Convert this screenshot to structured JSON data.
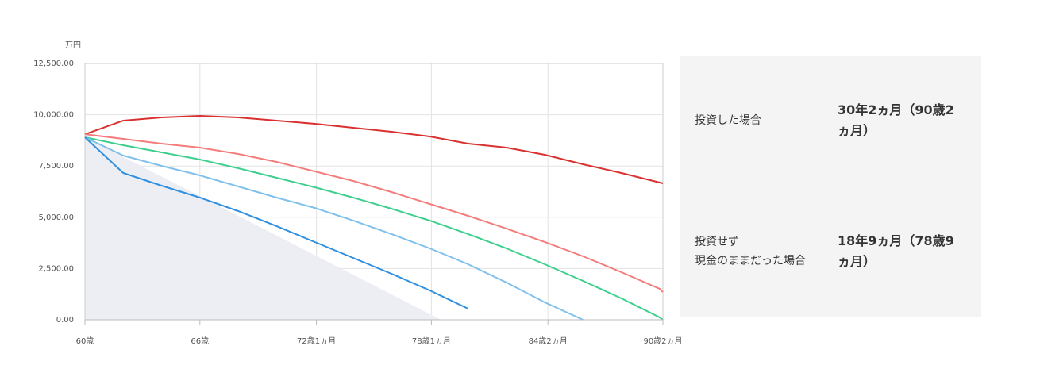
{
  "chart_data": {
    "type": "line",
    "y_unit": "万円",
    "x": [
      0,
      24,
      48,
      72,
      96,
      120,
      144,
      168,
      192,
      216,
      240,
      264,
      288,
      312,
      336,
      360,
      362
    ],
    "xlim": [
      0,
      362
    ],
    "xticks": [
      {
        "value": 0,
        "label": "60歳"
      },
      {
        "value": 72,
        "label": "66歳"
      },
      {
        "value": 145,
        "label": "72歳1ヵ月"
      },
      {
        "value": 217,
        "label": "78歳1ヵ月"
      },
      {
        "value": 290,
        "label": "84歳2ヵ月"
      },
      {
        "value": 362,
        "label": "90歳2ヵ月"
      }
    ],
    "ylim": [
      0,
      12500
    ],
    "yticks": [
      {
        "value": 0,
        "label": "0.00"
      },
      {
        "value": 2500,
        "label": "2,500.00"
      },
      {
        "value": 5000,
        "label": "5,000.00"
      },
      {
        "value": 7500,
        "label": "7,500.00"
      },
      {
        "value": 10000,
        "label": "10,000.00"
      },
      {
        "value": 12500,
        "label": "12,500.00"
      }
    ],
    "grid": true,
    "area": {
      "color": "#eceef3",
      "x": [
        0,
        223
      ],
      "values": [
        8900,
        0
      ]
    },
    "series": [
      {
        "color": "#d93030",
        "values": [
          9050,
          9714,
          9870,
          9946,
          9870,
          9714,
          9560,
          9365,
          9172,
          8940,
          8591,
          8398,
          8050,
          7585,
          7160,
          6695,
          6656
        ]
      },
      {
        "color": "#f47c7c",
        "values": [
          9050,
          8824,
          8591,
          8398,
          8088,
          7700,
          7237,
          6773,
          6231,
          5650,
          5070,
          4450,
          3793,
          3096,
          2322,
          1509,
          1355
        ]
      },
      {
        "color": "#3ecf8e",
        "values": [
          8900,
          8514,
          8166,
          7817,
          7392,
          6927,
          6463,
          5960,
          5418,
          4838,
          4180,
          3483,
          2709,
          1896,
          1045,
          116,
          0
        ]
      },
      {
        "color": "#80c0ec",
        "values": [
          8900,
          8011,
          7508,
          7043,
          6502,
          5960,
          5457,
          4838,
          4180,
          3483,
          2709,
          1819,
          851,
          0,
          null,
          null,
          null
        ]
      },
      {
        "color": "#2f8fe0",
        "values": [
          8900,
          7160,
          6540,
          5960,
          5302,
          4567,
          3793,
          3019,
          2245,
          1432,
          542,
          null,
          null,
          null,
          null,
          null,
          null
        ]
      }
    ]
  },
  "summary": {
    "rows": [
      [
        "投資した場合",
        "30年2ヵ月（90歳2ヵ月）"
      ],
      [
        "投資せず\n現金のままだった場合",
        "18年9ヵ月（78歳9ヵ月）"
      ]
    ]
  }
}
